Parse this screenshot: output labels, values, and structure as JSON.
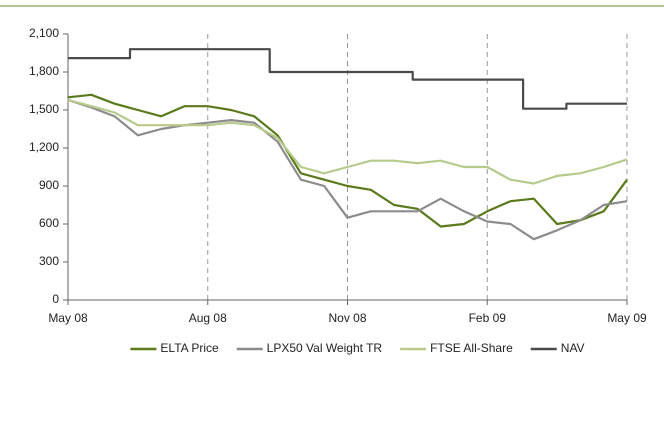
{
  "chart_data": {
    "type": "line",
    "x": [
      0,
      0.5,
      1,
      1.5,
      2,
      2.5,
      3,
      3.5,
      4,
      4.5,
      5,
      5.5,
      6,
      6.5,
      7,
      7.5,
      8,
      8.5,
      9,
      9.5,
      10,
      10.5,
      11,
      11.5,
      12
    ],
    "series": [
      {
        "name": "ELTA Price",
        "color": "#5b7a1c",
        "values": [
          1600,
          1620,
          1550,
          1500,
          1450,
          1530,
          1530,
          1500,
          1450,
          1300,
          1000,
          950,
          900,
          870,
          750,
          720,
          580,
          600,
          700,
          780,
          800,
          600,
          630,
          700,
          950
        ]
      },
      {
        "name": "LPX50 Val Weight TR",
        "color": "#8c8c8c",
        "values": [
          1580,
          1520,
          1450,
          1300,
          1350,
          1380,
          1400,
          1420,
          1400,
          1250,
          950,
          900,
          650,
          700,
          700,
          700,
          800,
          700,
          620,
          600,
          480,
          550,
          630,
          750,
          780
        ]
      },
      {
        "name": "FTSE All-Share",
        "color": "#b7ca8c",
        "values": [
          1580,
          1530,
          1480,
          1380,
          1380,
          1380,
          1380,
          1400,
          1380,
          1280,
          1050,
          1000,
          1050,
          1100,
          1100,
          1080,
          1100,
          1050,
          1050,
          950,
          920,
          980,
          1000,
          1050,
          1110
        ]
      },
      {
        "name": "NAV",
        "color": "#4a4a4a",
        "x": [
          0,
          1.33,
          1.33,
          4.33,
          4.33,
          7.4,
          7.4,
          9.77,
          9.77,
          10.7,
          10.7,
          12
        ],
        "values": [
          1910,
          1910,
          1980,
          1980,
          1800,
          1800,
          1740,
          1740,
          1510,
          1510,
          1550,
          1550
        ]
      }
    ],
    "xlim": [
      0,
      12
    ],
    "xticks": [
      {
        "value": 0,
        "label": "May 08"
      },
      {
        "value": 3,
        "label": "Aug 08"
      },
      {
        "value": 6,
        "label": "Nov 08"
      },
      {
        "value": 9,
        "label": "Feb 09"
      },
      {
        "value": 12,
        "label": "May 09"
      }
    ],
    "ylim": [
      0,
      2100
    ],
    "yticks": [
      0,
      300,
      600,
      900,
      {
        "value": 1200,
        "label": "1,200"
      },
      {
        "value": 1500,
        "label": "1,500"
      },
      {
        "value": 1800,
        "label": "1,800"
      },
      {
        "value": 2100,
        "label": "2,100"
      }
    ],
    "grid": "x",
    "legend": "bottom"
  }
}
